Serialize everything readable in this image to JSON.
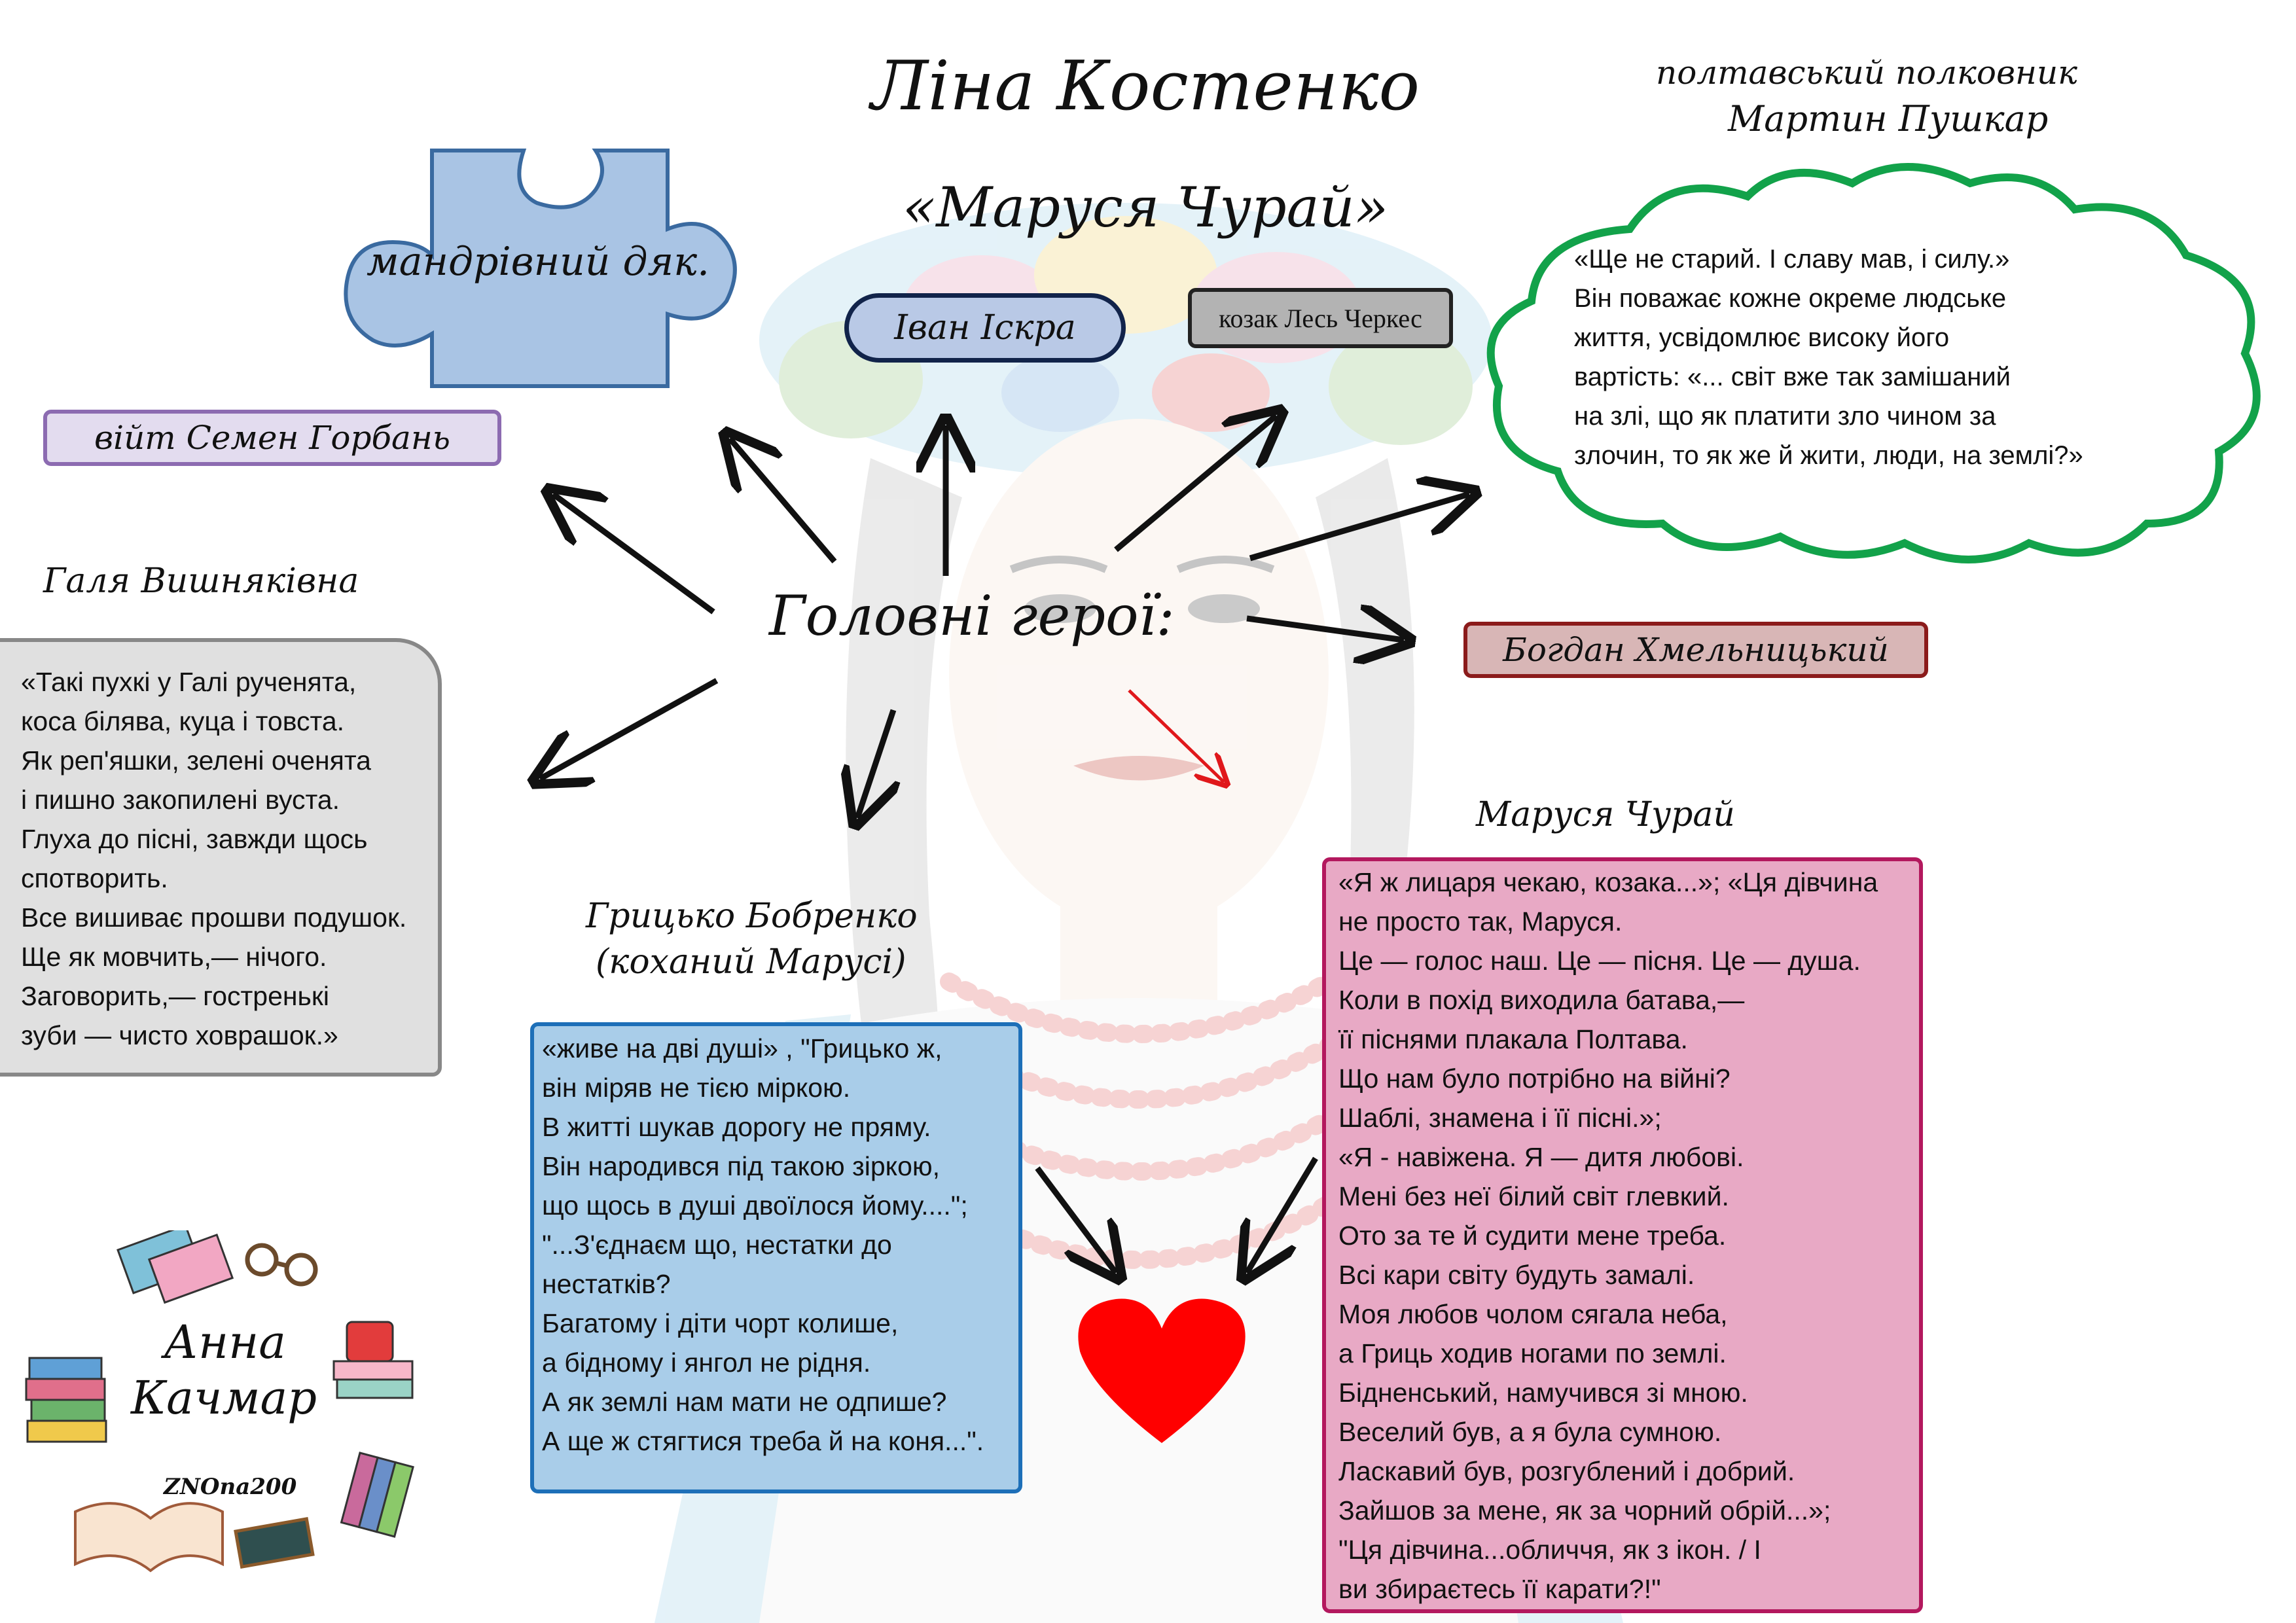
{
  "header": {
    "author": "Ліна Костенко",
    "work": "«Маруся Чурай»"
  },
  "center_label": "Головні герої:",
  "characters": {
    "dyak": "мандрівний дяк.",
    "ivan": "Іван Іскра",
    "les": "козак Лесь Черкес",
    "semen": "війт Семен Горбань",
    "bohdan": "Богдан Хмельницький",
    "pushkar_title": "полтавський полковник",
    "pushkar_name": "Мартин Пушкар",
    "halia": "Галя Вишняківна",
    "hryts_name": "Грицько Бобренко",
    "hryts_note": "(коханий Марусі)",
    "marusia": "Маруся Чурай"
  },
  "quotes": {
    "pushkar": [
      "«Ще не старий. І славу мав, і силу.»",
      "Він поважає кожне окреме людське",
      "життя, усвідомлює високу його",
      "вартість: «... світ вже так замішаний",
      "на злі, що як платити зло чином за",
      "злочин, то як же й жити, люди, на землі?»"
    ],
    "halia": [
      "«Такі пухкі у Галі рученята,",
      "коса білява, куца і товста.",
      "Як реп'яшки, зелені оченята",
      "і пишно закопилені вуста.",
      "Глуха до пісні, завжди щось",
      "спотворить.",
      "Все вишиває прошви подушок.",
      "Ще як мовчить,— нічого.",
      "Заговорить,— гостренькі",
      "зуби — чисто ховрашок.»"
    ],
    "hryts": [
      "«живе на дві душі» , \"Грицько ж,",
      "він міряв не тією міркою.",
      "В житті шукав дорогу не пряму.",
      "Він народився під такою зіркою,",
      "що щось в душі двоїлося йому....\";",
      "\"...З'єднаєм що, нестатки до",
      "нестатків?",
      "Багатому і діти чорт колише,",
      "а бідному і янгол не рідня.",
      "А як землі нам мати не одпише?",
      "А ще ж стягтися треба й на коня...\"."
    ],
    "marusia": [
      "«Я ж лицаря чекаю, козака...»; «Ця дівчина",
      "не просто так, Маруся.",
      "Це — голос наш. Це — пісня. Це — душа.",
      "Коли в похід виходила батава,—",
      "її піснями плакала Полтава.",
      "Що нам було потрібно на війні?",
      "Шаблі, знамена і її пісні.»;",
      "«Я - навіжена. Я — дитя любові.",
      "Мені без неї білий світ глевкий.",
      "Ото за те й судити мене треба.",
      "Всі кари світу будуть замалі.",
      "Моя любов чолом сягала неба,",
      "а Гриць ходив ногами по землі.",
      "Бідненський, намучився зі мною.",
      "Веселий був, а я була сумною.",
      "Ласкавий був, розгублений і добрий.",
      "Зайшов за мене, як за чорний обрій...»;",
      "\"Ця дівчина...обличчя, як з ікон. / І",
      "ви збираєтесь її карати?!\""
    ]
  },
  "logo": {
    "name_line1": "Анна",
    "name_line2": "Качмар",
    "sign": "ZNOna200"
  },
  "colors": {
    "puzzle": "#a9c4e4",
    "ivan_oval": "#b9c9e6",
    "les_box": "#b3b3b3",
    "semen_box": "#e3dcef",
    "semen_border": "#8c6bb1",
    "bohdan_box": "#d8b6b6",
    "bohdan_border": "#8b1b1b",
    "cloud_border": "#12a24a",
    "halia_box": "#e0e0e0",
    "hryts_box": "#a9cde9",
    "hryts_border": "#1d6fb8",
    "marusia_box": "#e8a9c5",
    "marusia_border": "#b3185e",
    "heart": "#ff0000",
    "red_arrow": "#e0181b"
  }
}
